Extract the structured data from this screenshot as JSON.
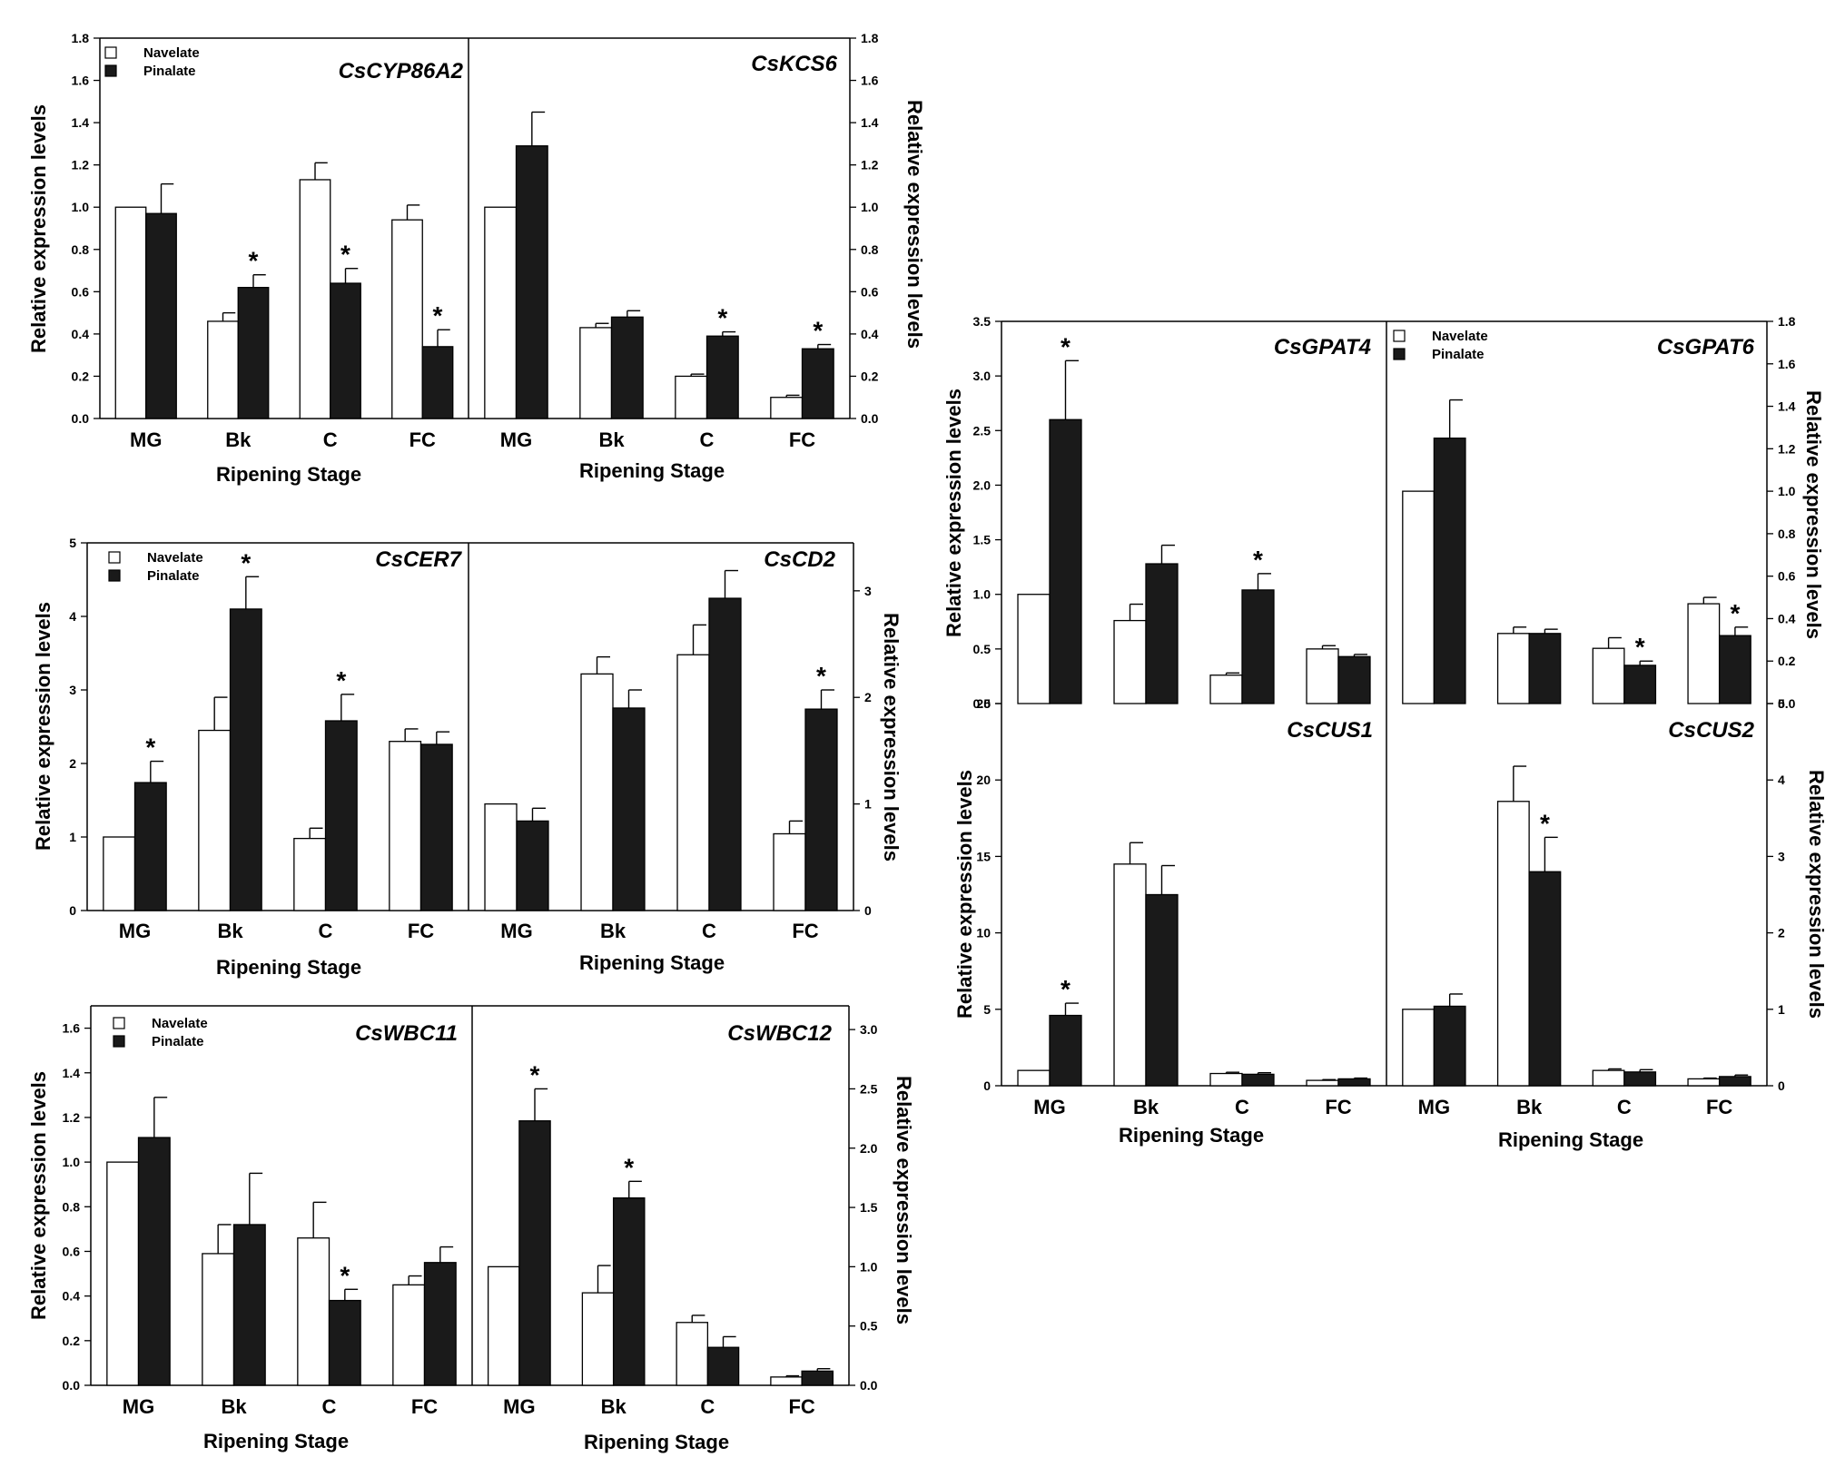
{
  "chart_data": [
    {
      "type": "bar",
      "panel": "row1-left",
      "title": "CsCYP86A2",
      "categories": [
        "MG",
        "Bk",
        "C",
        "FC"
      ],
      "series": [
        {
          "name": "Navelate",
          "values": [
            1.0,
            0.46,
            1.13,
            0.94
          ],
          "errors": [
            0,
            0.04,
            0.08,
            0.07
          ]
        },
        {
          "name": "Pinalate",
          "values": [
            0.97,
            0.62,
            0.64,
            0.34
          ],
          "errors": [
            0.14,
            0.06,
            0.07,
            0.08
          ]
        }
      ],
      "significant": [
        false,
        true,
        true,
        true
      ],
      "ylim": [
        0,
        1.8
      ],
      "yticks": [
        "0.0",
        "0.2",
        "0.4",
        "0.6",
        "0.8",
        "1.0",
        "1.2",
        "1.4",
        "1.6",
        "1.8"
      ],
      "ylabel": "Relative expression levels",
      "xlabel": "Ripening Stage",
      "legend": [
        "Navelate",
        "Pinalate"
      ]
    },
    {
      "type": "bar",
      "panel": "row1-right",
      "title": "CsKCS6",
      "categories": [
        "MG",
        "Bk",
        "C",
        "FC"
      ],
      "series": [
        {
          "name": "Navelate",
          "values": [
            1.0,
            0.43,
            0.2,
            0.1
          ],
          "errors": [
            0,
            0.02,
            0.01,
            0.01
          ]
        },
        {
          "name": "Pinalate",
          "values": [
            1.29,
            0.48,
            0.39,
            0.33
          ],
          "errors": [
            0.16,
            0.03,
            0.02,
            0.02
          ]
        }
      ],
      "significant": [
        false,
        false,
        true,
        true
      ],
      "ylim": [
        0,
        1.8
      ],
      "yticks": [
        "0.0",
        "0.2",
        "0.4",
        "0.6",
        "0.8",
        "1.0",
        "1.2",
        "1.4",
        "1.6",
        "1.8"
      ],
      "ylabel": "Relative expression levels",
      "xlabel": "Ripening Stage"
    },
    {
      "type": "bar",
      "panel": "row2-left",
      "title": "CsCER7",
      "categories": [
        "MG",
        "Bk",
        "C",
        "FC"
      ],
      "series": [
        {
          "name": "Navelate",
          "values": [
            1.0,
            2.45,
            0.98,
            2.3
          ],
          "errors": [
            0,
            0.45,
            0.14,
            0.17
          ]
        },
        {
          "name": "Pinalate",
          "values": [
            1.74,
            4.1,
            2.58,
            2.26
          ],
          "errors": [
            0.29,
            0.44,
            0.36,
            0.17
          ]
        }
      ],
      "significant": [
        true,
        true,
        true,
        false
      ],
      "ylim": [
        0,
        5
      ],
      "yticks": [
        "0",
        "1",
        "2",
        "3",
        "4",
        "5"
      ],
      "ylabel": "Relative expression levels",
      "xlabel": "Ripening Stage",
      "legend": [
        "Navelate",
        "Pinalate"
      ]
    },
    {
      "type": "bar",
      "panel": "row2-right",
      "title": "CsCD2",
      "categories": [
        "MG",
        "Bk",
        "C",
        "FC"
      ],
      "series": [
        {
          "name": "Navelate",
          "values": [
            1.0,
            2.22,
            2.4,
            0.72
          ],
          "errors": [
            0,
            0.16,
            0.28,
            0.12
          ]
        },
        {
          "name": "Pinalate",
          "values": [
            0.84,
            1.9,
            2.93,
            1.89
          ],
          "errors": [
            0.12,
            0.17,
            0.26,
            0.18
          ]
        }
      ],
      "significant": [
        false,
        false,
        false,
        true
      ],
      "ylim": [
        0,
        3.45
      ],
      "yticks": [
        "0",
        "1",
        "2",
        "3"
      ],
      "ylabel": "Relative expression levels",
      "xlabel": "Ripening Stage"
    },
    {
      "type": "bar",
      "panel": "row3-left",
      "title": "CsWBC11",
      "categories": [
        "MG",
        "Bk",
        "C",
        "FC"
      ],
      "series": [
        {
          "name": "Navelate",
          "values": [
            1.0,
            0.59,
            0.66,
            0.45
          ],
          "errors": [
            0,
            0.13,
            0.16,
            0.04
          ]
        },
        {
          "name": "Pinalate",
          "values": [
            1.11,
            0.72,
            0.38,
            0.55
          ],
          "errors": [
            0.18,
            0.23,
            0.05,
            0.07
          ]
        }
      ],
      "significant": [
        false,
        false,
        true,
        false
      ],
      "ylim": [
        0,
        1.7
      ],
      "yticks": [
        "0.0",
        "0.2",
        "0.4",
        "0.6",
        "0.8",
        "1.0",
        "1.2",
        "1.4",
        "1.6"
      ],
      "ylabel": "Relative expression levels",
      "xlabel": "Ripening Stage",
      "legend": [
        "Navelate",
        "Pinalate"
      ]
    },
    {
      "type": "bar",
      "panel": "row3-right",
      "title": "CsWBC12",
      "categories": [
        "MG",
        "Bk",
        "C",
        "FC"
      ],
      "series": [
        {
          "name": "Navelate",
          "values": [
            1.0,
            0.78,
            0.53,
            0.07
          ],
          "errors": [
            0,
            0.23,
            0.06,
            0.01
          ]
        },
        {
          "name": "Pinalate",
          "values": [
            2.23,
            1.58,
            0.32,
            0.12
          ],
          "errors": [
            0.27,
            0.14,
            0.09,
            0.02
          ]
        }
      ],
      "significant": [
        true,
        true,
        false,
        false
      ],
      "ylim": [
        0,
        3.2
      ],
      "yticks": [
        "0.0",
        "0.5",
        "1.0",
        "1.5",
        "2.0",
        "2.5",
        "3.0"
      ],
      "ylabel": "Relative expression levels",
      "xlabel": "Ripening Stage"
    },
    {
      "type": "bar",
      "panel": "right-top-left",
      "title": "CsGPAT4",
      "categories": [
        "MG",
        "Bk",
        "C",
        "FC"
      ],
      "series": [
        {
          "name": "Navelate",
          "values": [
            1.0,
            0.76,
            0.26,
            0.5
          ],
          "errors": [
            0,
            0.15,
            0.02,
            0.03
          ]
        },
        {
          "name": "Pinalate",
          "values": [
            2.6,
            1.28,
            1.04,
            0.43
          ],
          "errors": [
            0.54,
            0.17,
            0.15,
            0.02
          ]
        }
      ],
      "significant": [
        true,
        false,
        true,
        false
      ],
      "ylim": [
        0,
        3.5
      ],
      "yticks": [
        "0.0",
        "0.5",
        "1.0",
        "1.5",
        "2.0",
        "2.5",
        "3.0",
        "3.5"
      ],
      "ylabel": "Relative expression levels"
    },
    {
      "type": "bar",
      "panel": "right-top-right",
      "title": "CsGPAT6",
      "categories": [
        "MG",
        "Bk",
        "C",
        "FC"
      ],
      "series": [
        {
          "name": "Navelate",
          "values": [
            1.0,
            0.33,
            0.26,
            0.47
          ],
          "errors": [
            0,
            0.03,
            0.05,
            0.03
          ]
        },
        {
          "name": "Pinalate",
          "values": [
            1.25,
            0.33,
            0.18,
            0.32
          ],
          "errors": [
            0.18,
            0.02,
            0.02,
            0.04
          ]
        }
      ],
      "significant": [
        false,
        false,
        true,
        true
      ],
      "ylim": [
        0,
        1.8
      ],
      "yticks": [
        "0.0",
        "0.2",
        "0.4",
        "0.6",
        "0.8",
        "1.0",
        "1.2",
        "1.4",
        "1.6",
        "1.8"
      ],
      "ylabel": "Relative expression levels",
      "legend": [
        "Navelate",
        "Pinalate"
      ]
    },
    {
      "type": "bar",
      "panel": "right-bottom-left",
      "title": "CsCUS1",
      "categories": [
        "MG",
        "Bk",
        "C",
        "FC"
      ],
      "series": [
        {
          "name": "Navelate",
          "values": [
            1.0,
            14.5,
            0.8,
            0.35
          ],
          "errors": [
            0,
            1.4,
            0.08,
            0.05
          ]
        },
        {
          "name": "Pinalate",
          "values": [
            4.6,
            12.5,
            0.75,
            0.45
          ],
          "errors": [
            0.8,
            1.9,
            0.1,
            0.05
          ]
        }
      ],
      "significant": [
        true,
        false,
        false,
        false
      ],
      "ylim": [
        0,
        25
      ],
      "yticks": [
        "0",
        "5",
        "10",
        "15",
        "20",
        "25"
      ],
      "ylabel": "Relative expression levels",
      "xlabel": "Ripening Stage"
    },
    {
      "type": "bar",
      "panel": "right-bottom-right",
      "title": "CsCUS2",
      "categories": [
        "MG",
        "Bk",
        "C",
        "FC"
      ],
      "series": [
        {
          "name": "Navelate",
          "values": [
            1.0,
            3.72,
            0.2,
            0.09
          ],
          "errors": [
            0,
            0.46,
            0.02,
            0.01
          ]
        },
        {
          "name": "Pinalate",
          "values": [
            1.04,
            2.8,
            0.18,
            0.12
          ],
          "errors": [
            0.16,
            0.45,
            0.03,
            0.02
          ]
        }
      ],
      "significant": [
        false,
        true,
        false,
        false
      ],
      "ylim": [
        0,
        5
      ],
      "yticks": [
        "0",
        "1",
        "2",
        "3",
        "4",
        "5"
      ],
      "ylabel": "Relative expression levels",
      "xlabel": "Ripening Stage"
    }
  ]
}
